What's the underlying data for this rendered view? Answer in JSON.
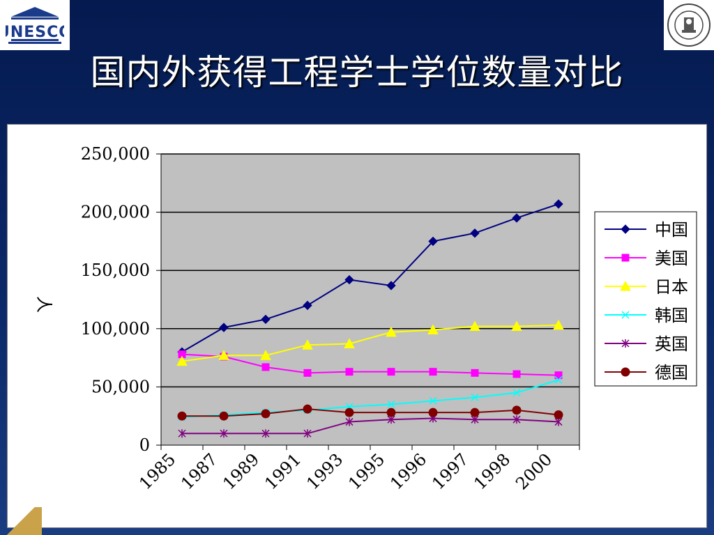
{
  "slide": {
    "title": "国内外获得工程学士学位数量对比",
    "logo_left_text": "UNESCO"
  },
  "colors": {
    "background": "#0b2a6b",
    "plot_area": "#c0c0c0"
  },
  "chart_data": {
    "type": "line",
    "title": "",
    "xlabel": "",
    "ylabel": "人",
    "categories": [
      "1985",
      "1987",
      "1989",
      "1991",
      "1993",
      "1995",
      "1996",
      "1997",
      "1998",
      "2000"
    ],
    "ylim": [
      0,
      250000
    ],
    "yticks": [
      0,
      50000,
      100000,
      150000,
      200000,
      250000
    ],
    "ytick_labels": [
      "0",
      "50,000",
      "100,000",
      "150,000",
      "200,000",
      "250,000"
    ],
    "grid": "horizontal",
    "legend_position": "right",
    "series": [
      {
        "name": "中国",
        "color": "#000080",
        "marker": "diamond",
        "values": [
          80000,
          101000,
          108000,
          120000,
          142000,
          137000,
          175000,
          182000,
          195000,
          207000
        ]
      },
      {
        "name": "美国",
        "color": "#ff00ff",
        "marker": "square",
        "values": [
          78000,
          76000,
          67000,
          62000,
          63000,
          63000,
          63000,
          62000,
          61000,
          60000
        ]
      },
      {
        "name": "日本",
        "color": "#ffff00",
        "marker": "triangle",
        "values": [
          72000,
          77000,
          77000,
          86000,
          87000,
          97000,
          99000,
          102000,
          102000,
          103000
        ]
      },
      {
        "name": "韩国",
        "color": "#00ffff",
        "marker": "x",
        "values": [
          24000,
          26000,
          28000,
          30000,
          33000,
          35000,
          38000,
          41000,
          45000,
          56000
        ]
      },
      {
        "name": "英国",
        "color": "#800080",
        "marker": "star",
        "values": [
          10000,
          10000,
          10000,
          10000,
          20000,
          22000,
          23000,
          22000,
          22000,
          20000
        ]
      },
      {
        "name": "德国",
        "color": "#800000",
        "marker": "circle",
        "values": [
          25000,
          25000,
          27000,
          31000,
          28000,
          28000,
          28000,
          28000,
          30000,
          26000
        ]
      }
    ]
  }
}
